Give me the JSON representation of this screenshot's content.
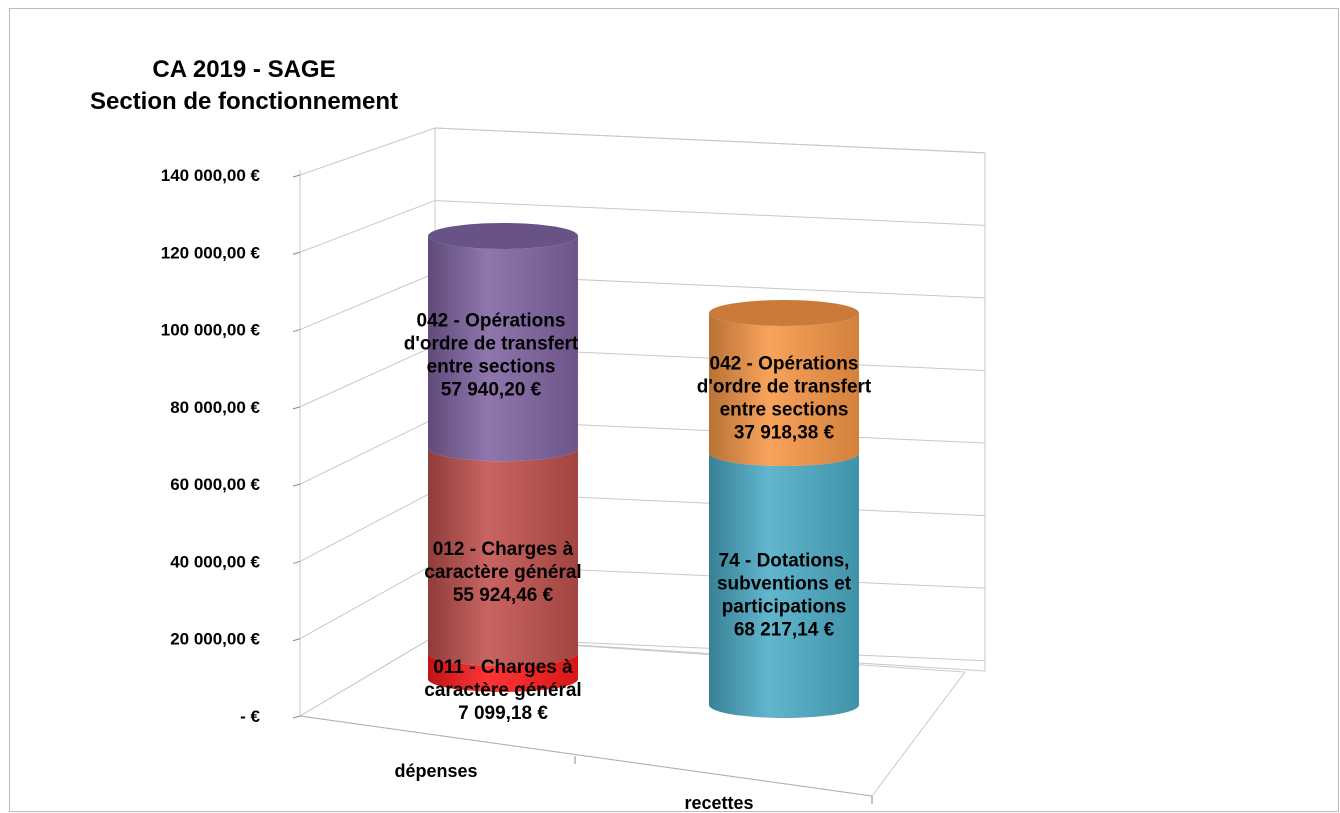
{
  "chart_data": {
    "type": "bar",
    "style": "3d-stacked-cylinder",
    "title": [
      "CA 2019 - SAGE",
      "Section de fonctionnement"
    ],
    "categories": [
      "dépenses",
      "recettes"
    ],
    "ylim": [
      0,
      140000
    ],
    "yticks": [
      0,
      20000,
      40000,
      60000,
      80000,
      100000,
      120000,
      140000
    ],
    "ytick_labels": [
      "-   €",
      "20 000,00 €",
      "40 000,00 €",
      "60 000,00 €",
      "80 000,00 €",
      "100 000,00 €",
      "120 000,00 €",
      "140 000,00 €"
    ],
    "grid": true,
    "legend": "none",
    "stacks": [
      {
        "category": "dépenses",
        "segments": [
          {
            "name": "011 - Charges à caractère général",
            "value": 7099.18,
            "color": "#ff1a1a",
            "label": [
              "011 - Charges à",
              "caractère général",
              "7 099,18 €"
            ]
          },
          {
            "name": "012 - Charges à caractère général",
            "value": 55924.46,
            "color": "#c0504d",
            "label": [
              "012 - Charges à",
              "caractère général",
              "55 924,46 €"
            ]
          },
          {
            "name": "042 - Opérations d'ordre de transfert entre sections",
            "value": 57940.2,
            "color": "#8064a2",
            "label": [
              "042 - Opérations",
              "d'ordre de transfert",
              "entre sections",
              "57 940,20 €"
            ]
          }
        ]
      },
      {
        "category": "recettes",
        "segments": [
          {
            "name": "74 - Dotations, subventions et participations",
            "value": 68217.14,
            "color": "#4bacc6",
            "label": [
              "74 - Dotations,",
              "subventions et",
              "participations",
              "68 217,14 €"
            ]
          },
          {
            "name": "042 - Opérations d'ordre de transfert entre sections",
            "value": 37918.38,
            "color": "#f79646",
            "label": [
              "042 - Opérations",
              "d'ordre de transfert",
              "entre sections",
              "37 918,38 €"
            ]
          }
        ]
      }
    ]
  }
}
